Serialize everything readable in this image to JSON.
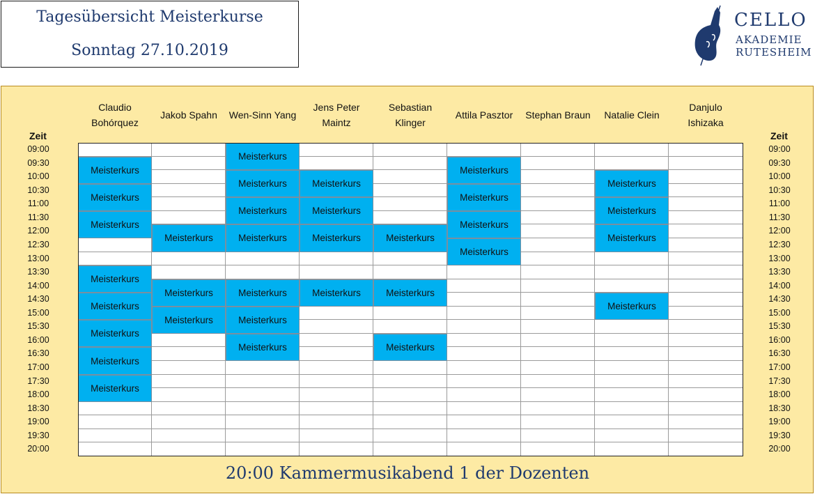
{
  "header": {
    "title": "Tagesübersicht Meisterkurse",
    "date": "Sonntag 27.10.2019"
  },
  "logo": {
    "line1": "CELLO",
    "line2": "AKADEMIE",
    "line3": "RUTESHEIM",
    "icon": "cello-icon",
    "color": "#1f3a6e"
  },
  "schedule": {
    "zeit_label": "Zeit",
    "times": [
      "09:00",
      "09:30",
      "10:00",
      "10:30",
      "11:00",
      "11:30",
      "12:00",
      "12:30",
      "13:00",
      "13:30",
      "14:00",
      "14:30",
      "15:00",
      "15:30",
      "16:00",
      "16:30",
      "17:00",
      "17:30",
      "18:00",
      "18:30",
      "19:00",
      "19:30",
      "20:00"
    ],
    "teachers": [
      {
        "name": "Claudio\nBohórquez",
        "events": [
          [
            1,
            3
          ],
          [
            3,
            5
          ],
          [
            5,
            7
          ],
          [
            9,
            11
          ],
          [
            11,
            13
          ],
          [
            13,
            15
          ],
          [
            15,
            17
          ],
          [
            17,
            19
          ]
        ]
      },
      {
        "name": "Jakob Spahn",
        "events": [
          [
            6,
            8
          ],
          [
            10,
            12
          ],
          [
            12,
            14
          ]
        ]
      },
      {
        "name": "Wen-Sinn Yang",
        "events": [
          [
            0,
            2
          ],
          [
            2,
            4
          ],
          [
            4,
            6
          ],
          [
            6,
            8
          ],
          [
            10,
            12
          ],
          [
            12,
            14
          ],
          [
            14,
            16
          ]
        ]
      },
      {
        "name": "Jens Peter\nMaintz",
        "events": [
          [
            2,
            4
          ],
          [
            4,
            6
          ],
          [
            6,
            8
          ],
          [
            10,
            12
          ]
        ]
      },
      {
        "name": "Sebastian\nKlinger",
        "events": [
          [
            6,
            8
          ],
          [
            10,
            12
          ],
          [
            14,
            16
          ]
        ]
      },
      {
        "name": "Attila Pasztor",
        "events": [
          [
            1,
            3
          ],
          [
            3,
            5
          ],
          [
            5,
            7
          ],
          [
            7,
            9
          ]
        ]
      },
      {
        "name": "Stephan Braun",
        "events": []
      },
      {
        "name": "Natalie Clein",
        "events": [
          [
            2,
            4
          ],
          [
            4,
            6
          ],
          [
            6,
            8
          ],
          [
            11,
            13
          ]
        ]
      },
      {
        "name": "Danjulo\nIshizaka",
        "events": []
      }
    ],
    "event_label": "Meisterkurs",
    "event_color": "#00b0f0",
    "panel_color": "#fdeaa4"
  },
  "footer": {
    "text": "20:00 Kammermusikabend 1 der Dozenten"
  }
}
